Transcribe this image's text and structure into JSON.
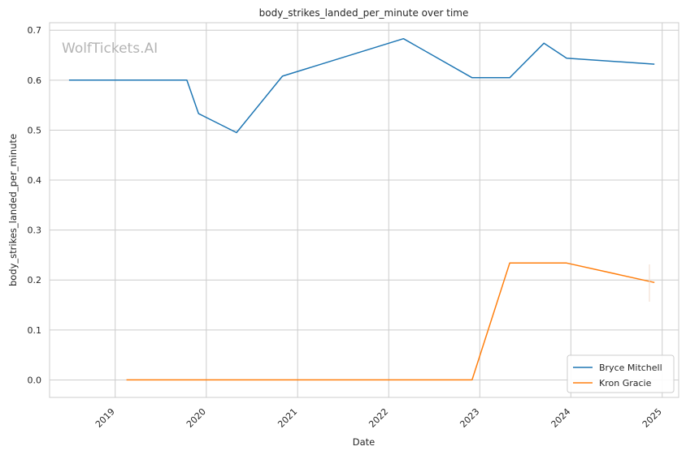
{
  "chart_data": {
    "type": "line",
    "title": "body_strikes_landed_per_minute over time",
    "xlabel": "Date",
    "ylabel": "body_strikes_landed_per_minute",
    "watermark": "WolfTickets.AI",
    "x_ticks": [
      "2019",
      "2020",
      "2021",
      "2022",
      "2023",
      "2024",
      "2025"
    ],
    "y_ticks": [
      "0.0",
      "0.1",
      "0.2",
      "0.3",
      "0.4",
      "0.5",
      "0.6",
      "0.7"
    ],
    "ylim": [
      -0.035,
      0.715
    ],
    "xlim": [
      "2018-04-13",
      "2025-03-08"
    ],
    "grid": true,
    "legend_position": "bottom-right",
    "series": [
      {
        "name": "Bryce Mitchell",
        "color": "#1f77b4",
        "points": [
          {
            "x": "2018-06-30",
            "y": 0.6
          },
          {
            "x": "2019-10-15",
            "y": 0.6
          },
          {
            "x": "2019-12-01",
            "y": 0.533
          },
          {
            "x": "2020-05-01",
            "y": 0.495
          },
          {
            "x": "2020-11-01",
            "y": 0.608
          },
          {
            "x": "2022-03-01",
            "y": 0.683
          },
          {
            "x": "2022-12-01",
            "y": 0.605
          },
          {
            "x": "2023-05-01",
            "y": 0.605
          },
          {
            "x": "2023-09-15",
            "y": 0.674
          },
          {
            "x": "2023-12-15",
            "y": 0.644
          },
          {
            "x": "2024-12-01",
            "y": 0.632
          }
        ]
      },
      {
        "name": "Kron Gracie",
        "color": "#ff7f0e",
        "points": [
          {
            "x": "2019-02-15",
            "y": 0.0
          },
          {
            "x": "2022-12-01",
            "y": 0.0
          },
          {
            "x": "2023-05-01",
            "y": 0.234
          },
          {
            "x": "2023-12-15",
            "y": 0.234
          },
          {
            "x": "2024-12-01",
            "y": 0.195
          }
        ]
      }
    ]
  }
}
